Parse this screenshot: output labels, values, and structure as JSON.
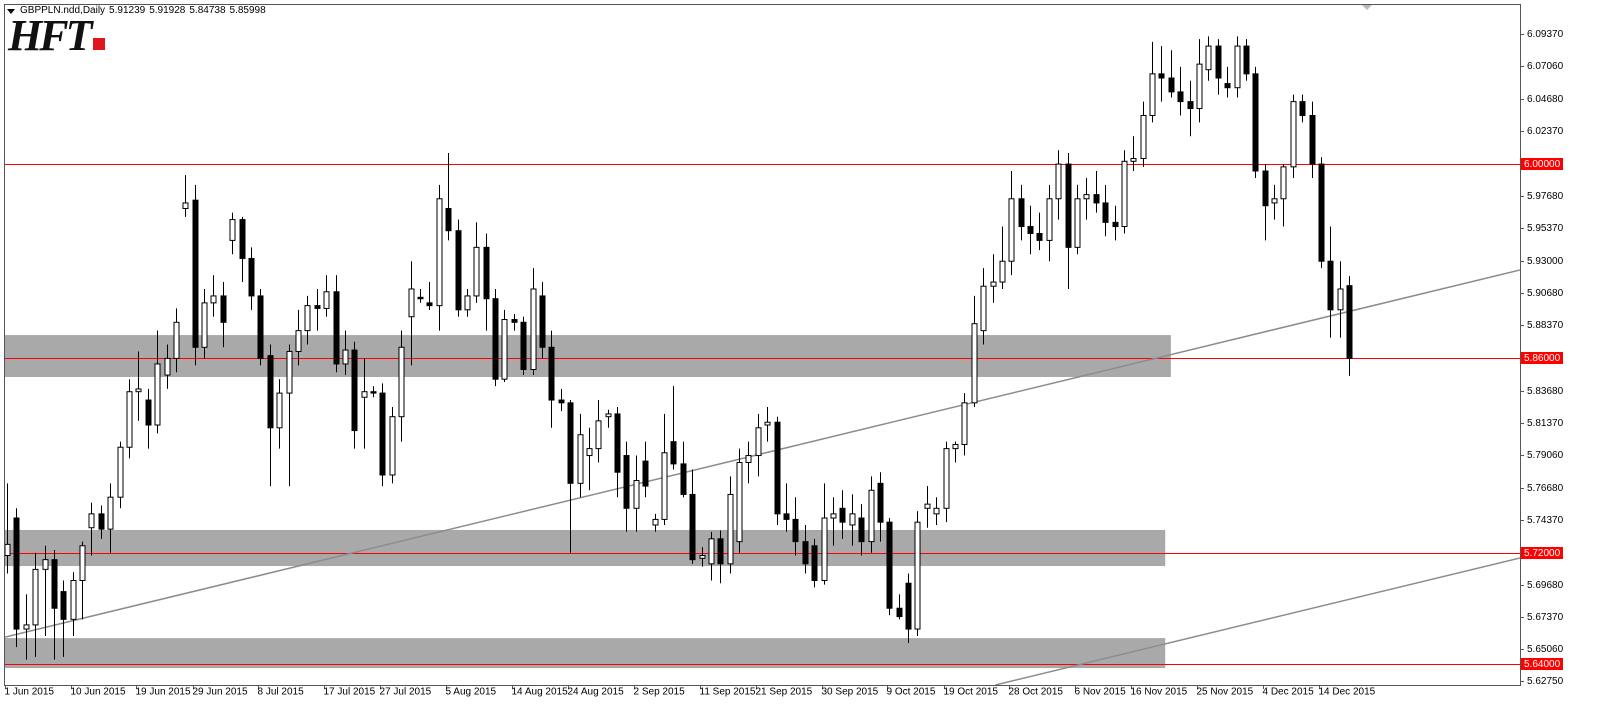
{
  "chart_data": {
    "type": "candlestick",
    "title": "GBPPLN.ndd,Daily",
    "logo": "HFT",
    "up_color": "#ffffff",
    "down_color": "#000000",
    "candles": [
      [
        5.718,
        5.77,
        5.705,
        5.726
      ],
      [
        5.745,
        5.752,
        5.652,
        5.665
      ],
      [
        5.665,
        5.69,
        5.643,
        5.668
      ],
      [
        5.668,
        5.72,
        5.645,
        5.708
      ],
      [
        5.708,
        5.725,
        5.66,
        5.715
      ],
      [
        5.715,
        5.722,
        5.643,
        5.68
      ],
      [
        5.692,
        5.7,
        5.645,
        5.672
      ],
      [
        5.672,
        5.706,
        5.66,
        5.7
      ],
      [
        5.7,
        5.728,
        5.672,
        5.725
      ],
      [
        5.738,
        5.756,
        5.718,
        5.748
      ],
      [
        5.748,
        5.754,
        5.73,
        5.737
      ],
      [
        5.737,
        5.77,
        5.72,
        5.76
      ],
      [
        5.76,
        5.8,
        5.752,
        5.796
      ],
      [
        5.796,
        5.845,
        5.788,
        5.836
      ],
      [
        5.836,
        5.865,
        5.815,
        5.838
      ],
      [
        5.83,
        5.838,
        5.795,
        5.812
      ],
      [
        5.812,
        5.88,
        5.806,
        5.856
      ],
      [
        5.848,
        5.87,
        5.838,
        5.86
      ],
      [
        5.86,
        5.896,
        5.85,
        5.886
      ],
      [
        5.968,
        5.992,
        5.962,
        5.972
      ],
      [
        5.974,
        5.985,
        5.855,
        5.868
      ],
      [
        5.868,
        5.91,
        5.86,
        5.9
      ],
      [
        5.9,
        5.92,
        5.89,
        5.905
      ],
      [
        5.905,
        5.915,
        5.868,
        5.886
      ],
      [
        5.945,
        5.965,
        5.935,
        5.96
      ],
      [
        5.96,
        5.962,
        5.915,
        5.932
      ],
      [
        5.932,
        5.94,
        5.895,
        5.905
      ],
      [
        5.905,
        5.91,
        5.855,
        5.86
      ],
      [
        5.862,
        5.87,
        5.768,
        5.81
      ],
      [
        5.81,
        5.845,
        5.795,
        5.835
      ],
      [
        5.835,
        5.87,
        5.768,
        5.865
      ],
      [
        5.865,
        5.895,
        5.855,
        5.88
      ],
      [
        5.88,
        5.905,
        5.87,
        5.898
      ],
      [
        5.898,
        5.91,
        5.88,
        5.896
      ],
      [
        5.896,
        5.92,
        5.89,
        5.908
      ],
      [
        5.908,
        5.92,
        5.85,
        5.856
      ],
      [
        5.856,
        5.88,
        5.848,
        5.866
      ],
      [
        5.866,
        5.872,
        5.795,
        5.808
      ],
      [
        5.832,
        5.86,
        5.795,
        5.836
      ],
      [
        5.836,
        5.84,
        5.832,
        5.835
      ],
      [
        5.835,
        5.842,
        5.768,
        5.776
      ],
      [
        5.776,
        5.825,
        5.77,
        5.818
      ],
      [
        5.818,
        5.88,
        5.8,
        5.868
      ],
      [
        5.89,
        5.93,
        5.855,
        5.91
      ],
      [
        5.904,
        5.91,
        5.9,
        5.903
      ],
      [
        5.9,
        5.915,
        5.895,
        5.898
      ],
      [
        5.898,
        5.985,
        5.88,
        5.975
      ],
      [
        5.968,
        6.008,
        5.945,
        5.952
      ],
      [
        5.952,
        5.96,
        5.89,
        5.895
      ],
      [
        5.895,
        5.91,
        5.89,
        5.905
      ],
      [
        5.905,
        5.958,
        5.9,
        5.94
      ],
      [
        5.94,
        5.95,
        5.88,
        5.903
      ],
      [
        5.903,
        5.91,
        5.84,
        5.845
      ],
      [
        5.845,
        5.895,
        5.843,
        5.888
      ],
      [
        5.888,
        5.892,
        5.88,
        5.886
      ],
      [
        5.886,
        5.89,
        5.848,
        5.852
      ],
      [
        5.852,
        5.925,
        5.848,
        5.91
      ],
      [
        5.905,
        5.915,
        5.86,
        5.868
      ],
      [
        5.868,
        5.88,
        5.81,
        5.83
      ],
      [
        5.83,
        5.838,
        5.822,
        5.828
      ],
      [
        5.828,
        5.83,
        5.72,
        5.77
      ],
      [
        5.77,
        5.82,
        5.76,
        5.805
      ],
      [
        5.79,
        5.81,
        5.765,
        5.795
      ],
      [
        5.795,
        5.83,
        5.785,
        5.815
      ],
      [
        5.818,
        5.823,
        5.81,
        5.82
      ],
      [
        5.82,
        5.825,
        5.76,
        5.778
      ],
      [
        5.79,
        5.8,
        5.735,
        5.752
      ],
      [
        5.752,
        5.79,
        5.735,
        5.772
      ],
      [
        5.786,
        5.8,
        5.76,
        5.768
      ],
      [
        5.74,
        5.748,
        5.735,
        5.744
      ],
      [
        5.744,
        5.82,
        5.74,
        5.792
      ],
      [
        5.8,
        5.84,
        5.78,
        5.784
      ],
      [
        5.784,
        5.8,
        5.76,
        5.762
      ],
      [
        5.762,
        5.78,
        5.712,
        5.715
      ],
      [
        5.716,
        5.724,
        5.71,
        5.718
      ],
      [
        5.712,
        5.735,
        5.7,
        5.73
      ],
      [
        5.73,
        5.736,
        5.698,
        5.712
      ],
      [
        5.712,
        5.775,
        5.705,
        5.762
      ],
      [
        5.728,
        5.795,
        5.72,
        5.785
      ],
      [
        5.785,
        5.8,
        5.77,
        5.79
      ],
      [
        5.79,
        5.82,
        5.775,
        5.81
      ],
      [
        5.812,
        5.825,
        5.8,
        5.814
      ],
      [
        5.814,
        5.818,
        5.74,
        5.748
      ],
      [
        5.748,
        5.77,
        5.735,
        5.744
      ],
      [
        5.744,
        5.76,
        5.718,
        5.728
      ],
      [
        5.728,
        5.74,
        5.705,
        5.712
      ],
      [
        5.725,
        5.73,
        5.695,
        5.7
      ],
      [
        5.7,
        5.77,
        5.697,
        5.745
      ],
      [
        5.745,
        5.76,
        5.725,
        5.748
      ],
      [
        5.752,
        5.765,
        5.73,
        5.742
      ],
      [
        5.74,
        5.762,
        5.725,
        5.748
      ],
      [
        5.745,
        5.755,
        5.718,
        5.728
      ],
      [
        5.728,
        5.775,
        5.72,
        5.765
      ],
      [
        5.77,
        5.778,
        5.728,
        5.742
      ],
      [
        5.742,
        5.745,
        5.675,
        5.68
      ],
      [
        5.68,
        5.69,
        5.672,
        5.674
      ],
      [
        5.698,
        5.705,
        5.655,
        5.665
      ],
      [
        5.665,
        5.75,
        5.66,
        5.742
      ],
      [
        5.752,
        5.768,
        5.738,
        5.755
      ],
      [
        5.748,
        5.76,
        5.74,
        5.752
      ],
      [
        5.752,
        5.8,
        5.742,
        5.795
      ],
      [
        5.795,
        5.8,
        5.785,
        5.798
      ],
      [
        5.798,
        5.835,
        5.79,
        5.828
      ],
      [
        5.828,
        5.905,
        5.825,
        5.885
      ],
      [
        5.88,
        5.925,
        5.87,
        5.912
      ],
      [
        5.912,
        5.935,
        5.9,
        5.915
      ],
      [
        5.915,
        5.955,
        5.91,
        5.93
      ],
      [
        5.93,
        5.995,
        5.92,
        5.975
      ],
      [
        5.975,
        5.985,
        5.945,
        5.955
      ],
      [
        5.955,
        5.97,
        5.935,
        5.95
      ],
      [
        5.95,
        5.965,
        5.938,
        5.945
      ],
      [
        5.945,
        5.985,
        5.93,
        5.975
      ],
      [
        5.975,
        6.01,
        5.96,
        6.0
      ],
      [
        6.0,
        6.008,
        5.91,
        5.94
      ],
      [
        5.94,
        5.985,
        5.935,
        5.975
      ],
      [
        5.975,
        5.99,
        5.96,
        5.978
      ],
      [
        5.978,
        5.995,
        5.965,
        5.972
      ],
      [
        5.972,
        5.985,
        5.948,
        5.958
      ],
      [
        5.958,
        5.97,
        5.945,
        5.955
      ],
      [
        5.955,
        6.01,
        5.95,
        6.002
      ],
      [
        6.002,
        6.02,
        5.995,
        6.004
      ],
      [
        6.004,
        6.045,
        5.998,
        6.035
      ],
      [
        6.035,
        6.088,
        6.03,
        6.065
      ],
      [
        6.065,
        6.085,
        6.045,
        6.062
      ],
      [
        6.062,
        6.082,
        6.048,
        6.052
      ],
      [
        6.052,
        6.07,
        6.035,
        6.045
      ],
      [
        6.045,
        6.06,
        6.02,
        6.04
      ],
      [
        6.04,
        6.09,
        6.03,
        6.072
      ],
      [
        6.068,
        6.092,
        6.06,
        6.085
      ],
      [
        6.085,
        6.09,
        6.05,
        6.062
      ],
      [
        6.058,
        6.07,
        6.048,
        6.055
      ],
      [
        6.055,
        6.092,
        6.048,
        6.085
      ],
      [
        6.085,
        6.09,
        6.06,
        6.065
      ],
      [
        6.065,
        6.07,
        5.99,
        5.995
      ],
      [
        5.995,
        6.0,
        5.945,
        5.97
      ],
      [
        5.972,
        5.985,
        5.96,
        5.975
      ],
      [
        5.975,
        6.0,
        5.955,
        5.998
      ],
      [
        5.998,
        6.05,
        5.99,
        6.045
      ],
      [
        6.045,
        6.05,
        6.03,
        6.035
      ],
      [
        6.035,
        6.045,
        5.99,
        6.0
      ],
      [
        6.0,
        6.005,
        5.925,
        5.93
      ],
      [
        5.93,
        5.955,
        5.875,
        5.895
      ],
      [
        5.895,
        5.93,
        5.875,
        5.91
      ],
      [
        5.91239,
        5.91928,
        5.84738,
        5.85998
      ]
    ],
    "categories": [
      "1 Jun 2015",
      null,
      null,
      null,
      null,
      null,
      null,
      "10 Jun 2015",
      null,
      null,
      null,
      null,
      null,
      null,
      "19 Jun 2015",
      null,
      null,
      null,
      null,
      null,
      "29 Jun 2015",
      null,
      null,
      null,
      null,
      null,
      null,
      "8 Jul 2015",
      null,
      null,
      null,
      null,
      null,
      null,
      "17 Jul 2015",
      null,
      null,
      null,
      null,
      null,
      "27 Jul 2015",
      null,
      null,
      null,
      null,
      null,
      null,
      "5 Aug 2015",
      null,
      null,
      null,
      null,
      null,
      null,
      "14 Aug 2015",
      null,
      null,
      null,
      null,
      null,
      "24 Aug 2015",
      null,
      null,
      null,
      null,
      null,
      null,
      "2 Sep 2015",
      null,
      null,
      null,
      null,
      null,
      null,
      "11 Sep 2015",
      null,
      null,
      null,
      null,
      null,
      "21 Sep 2015",
      null,
      null,
      null,
      null,
      null,
      null,
      "30 Sep 2015",
      null,
      null,
      null,
      null,
      null,
      null,
      "9 Oct 2015",
      null,
      null,
      null,
      null,
      null,
      "19 Oct 2015",
      null,
      null,
      null,
      null,
      null,
      null,
      "28 Oct 2015",
      null,
      null,
      null,
      null,
      null,
      null,
      "6 Nov 2015",
      null,
      null,
      null,
      null,
      null,
      "16 Nov 2015",
      null,
      null,
      null,
      null,
      null,
      null,
      "25 Nov 2015",
      null,
      null,
      null,
      null,
      null,
      null,
      "4 Dec 2015",
      null,
      null,
      null,
      null,
      null,
      "14 Dec 2015",
      null,
      null,
      null
    ],
    "ylim": [
      5.6247,
      6.1146
    ],
    "yticks": [
      {
        "value": 6.0937,
        "label": "6.09370"
      },
      {
        "value": 6.0706,
        "label": "6.07060"
      },
      {
        "value": 6.0468,
        "label": "6.04680"
      },
      {
        "value": 6.0237,
        "label": "6.02370"
      },
      {
        "value": 5.9768,
        "label": "5.97680"
      },
      {
        "value": 5.9537,
        "label": "5.95370"
      },
      {
        "value": 5.93,
        "label": "5.93000"
      },
      {
        "value": 5.9068,
        "label": "5.90680"
      },
      {
        "value": 5.8837,
        "label": "5.88370"
      },
      {
        "value": 5.8368,
        "label": "5.83680"
      },
      {
        "value": 5.8137,
        "label": "5.81370"
      },
      {
        "value": 5.7906,
        "label": "5.79060"
      },
      {
        "value": 5.7668,
        "label": "5.76680"
      },
      {
        "value": 5.7437,
        "label": "5.74370"
      },
      {
        "value": 5.6968,
        "label": "5.69680"
      },
      {
        "value": 5.6737,
        "label": "5.67370"
      },
      {
        "value": 5.6506,
        "label": "5.65060"
      },
      {
        "value": 5.6275,
        "label": "5.62750"
      }
    ],
    "levels": [
      {
        "value": 6.0,
        "label": "6.00000"
      },
      {
        "value": 5.86,
        "label": "5.86000"
      },
      {
        "value": 5.72,
        "label": "5.72000"
      },
      {
        "value": 5.64,
        "label": "5.64000"
      }
    ],
    "level_color": "#ff0000",
    "zones": [
      {
        "low": 5.8466,
        "high": 5.8768,
        "end": 124
      },
      {
        "low": 5.7104,
        "high": 5.7364,
        "end": 123.4
      },
      {
        "low": 5.6369,
        "high": 5.6585,
        "end": 123.4
      }
    ],
    "zone_color": "#a9a9a9",
    "trendlines": [
      {
        "x": [
          -0.2,
          161.2
        ],
        "y": [
          5.6592,
          5.9237
        ]
      },
      {
        "x": [
          105.3,
          161.2
        ],
        "y": [
          5.6247,
          5.7162
        ]
      }
    ],
    "trendline_color": "#8c8c8c"
  }
}
